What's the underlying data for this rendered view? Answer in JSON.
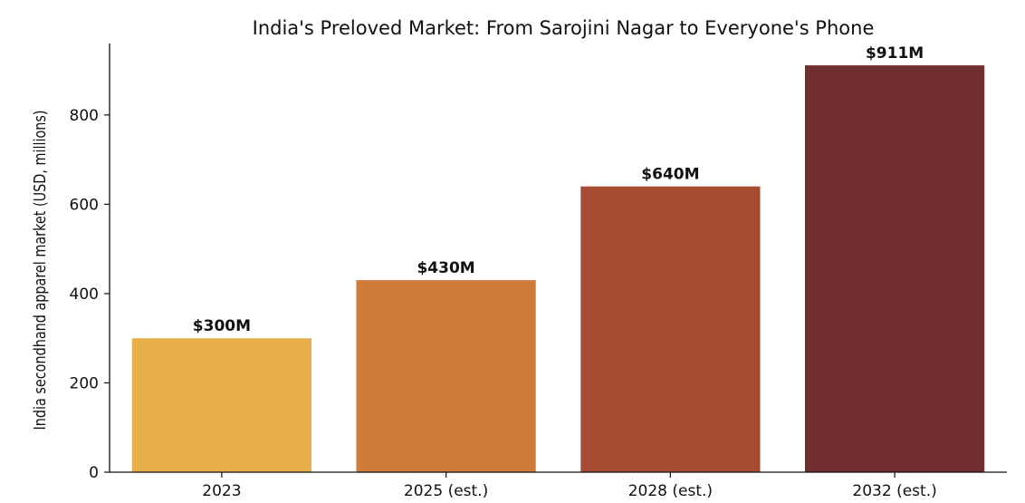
{
  "chart_data": {
    "type": "bar",
    "title": "India's Preloved Market: From Sarojini Nagar to Everyone's Phone",
    "xlabel": "",
    "ylabel": "India secondhand apparel market (USD, millions)",
    "categories": [
      "2023",
      "2025 (est.)",
      "2028 (est.)",
      "2032 (est.)"
    ],
    "values": [
      300,
      430,
      640,
      911
    ],
    "value_labels": [
      "$300M",
      "$430M",
      "$640M",
      "$911M"
    ],
    "colors": [
      "#E8B04B",
      "#D07A3C",
      "#A64C33",
      "#702E2E"
    ],
    "ylim": [
      0,
      960
    ],
    "yticks": [
      0,
      200,
      400,
      600,
      800
    ],
    "grid": false,
    "legend": "none"
  }
}
